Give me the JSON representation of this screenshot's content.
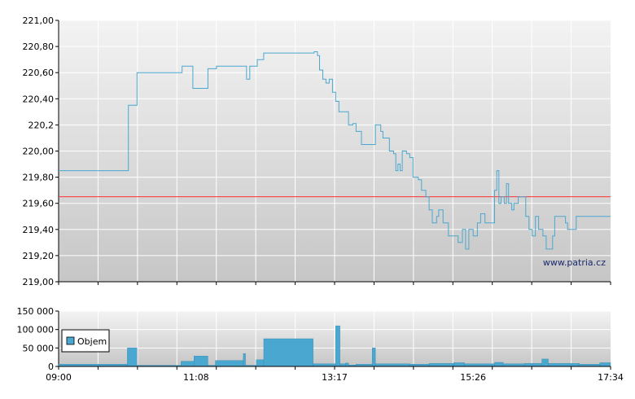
{
  "chart_data": [
    {
      "type": "line",
      "name_hint": "price",
      "x_ticks": [
        "09:00",
        "11:08",
        "13:17",
        "15:26",
        "17:34"
      ],
      "y_ticks": [
        "219,00",
        "219,20",
        "219,40",
        "219,60",
        "219,80",
        "220,00",
        "220,2",
        "220,40",
        "220,60",
        "220,80",
        "221,00"
      ],
      "ylim": [
        219.0,
        221.0
      ],
      "xlim": [
        "09:00",
        "17:34"
      ],
      "grid": true,
      "reference_line": 219.65,
      "watermark": "www.patria.cz",
      "colors": {
        "line": "#4aa8d0",
        "reference": "#ff3030",
        "grid": "#ffffff"
      },
      "series": [
        {
          "points": [
            [
              "09:00",
              219.85
            ],
            [
              "10:04",
              219.85
            ],
            [
              "10:05",
              220.35
            ],
            [
              "10:12",
              220.35
            ],
            [
              "10:13",
              220.6
            ],
            [
              "10:54",
              220.6
            ],
            [
              "10:55",
              220.65
            ],
            [
              "11:04",
              220.65
            ],
            [
              "11:05",
              220.48
            ],
            [
              "11:18",
              220.48
            ],
            [
              "11:19",
              220.63
            ],
            [
              "11:26",
              220.63
            ],
            [
              "11:27",
              220.65
            ],
            [
              "11:54",
              220.65
            ],
            [
              "11:55",
              220.55
            ],
            [
              "11:57",
              220.55
            ],
            [
              "11:58",
              220.65
            ],
            [
              "12:04",
              220.65
            ],
            [
              "12:05",
              220.7
            ],
            [
              "12:10",
              220.7
            ],
            [
              "12:11",
              220.75
            ],
            [
              "12:57",
              220.75
            ],
            [
              "12:58",
              220.76
            ],
            [
              "13:01",
              220.73
            ],
            [
              "13:03",
              220.62
            ],
            [
              "13:06",
              220.55
            ],
            [
              "13:09",
              220.52
            ],
            [
              "13:12",
              220.55
            ],
            [
              "13:15",
              220.45
            ],
            [
              "13:18",
              220.38
            ],
            [
              "13:21",
              220.3
            ],
            [
              "13:27",
              220.3
            ],
            [
              "13:30",
              220.2
            ],
            [
              "13:34",
              220.21
            ],
            [
              "13:37",
              220.15
            ],
            [
              "13:42",
              220.05
            ],
            [
              "13:53",
              220.05
            ],
            [
              "13:55",
              220.2
            ],
            [
              "14:00",
              220.15
            ],
            [
              "14:02",
              220.1
            ],
            [
              "14:06",
              220.1
            ],
            [
              "14:08",
              220.0
            ],
            [
              "14:12",
              219.98
            ],
            [
              "14:14",
              219.85
            ],
            [
              "14:16",
              219.9
            ],
            [
              "14:18",
              219.85
            ],
            [
              "14:20",
              220.0
            ],
            [
              "14:24",
              219.98
            ],
            [
              "14:27",
              219.95
            ],
            [
              "14:30",
              219.8
            ],
            [
              "14:35",
              219.78
            ],
            [
              "14:38",
              219.7
            ],
            [
              "14:42",
              219.65
            ],
            [
              "14:45",
              219.55
            ],
            [
              "14:48",
              219.45
            ],
            [
              "14:52",
              219.5
            ],
            [
              "14:54",
              219.55
            ],
            [
              "14:58",
              219.45
            ],
            [
              "15:03",
              219.35
            ],
            [
              "15:10",
              219.35
            ],
            [
              "15:12",
              219.3
            ],
            [
              "15:16",
              219.4
            ],
            [
              "15:19",
              219.25
            ],
            [
              "15:22",
              219.4
            ],
            [
              "15:26",
              219.35
            ],
            [
              "15:30",
              219.45
            ],
            [
              "15:33",
              219.52
            ],
            [
              "15:37",
              219.45
            ],
            [
              "15:44",
              219.45
            ],
            [
              "15:46",
              219.7
            ],
            [
              "15:48",
              219.85
            ],
            [
              "15:50",
              219.6
            ],
            [
              "15:52",
              219.65
            ],
            [
              "15:55",
              219.6
            ],
            [
              "15:57",
              219.75
            ],
            [
              "15:59",
              219.6
            ],
            [
              "16:02",
              219.55
            ],
            [
              "16:04",
              219.6
            ],
            [
              "16:08",
              219.65
            ],
            [
              "16:14",
              219.65
            ],
            [
              "16:15",
              219.5
            ],
            [
              "16:18",
              219.4
            ],
            [
              "16:21",
              219.35
            ],
            [
              "16:24",
              219.5
            ],
            [
              "16:27",
              219.4
            ],
            [
              "16:31",
              219.35
            ],
            [
              "16:34",
              219.25
            ],
            [
              "16:40",
              219.35
            ],
            [
              "16:42",
              219.5
            ],
            [
              "16:52",
              219.45
            ],
            [
              "16:54",
              219.4
            ],
            [
              "17:02",
              219.5
            ],
            [
              "17:34",
              219.5
            ]
          ]
        }
      ]
    },
    {
      "type": "bar",
      "name_hint": "volume",
      "legend": [
        "Objem"
      ],
      "x_ticks": [
        "09:00",
        "11:08",
        "13:17",
        "15:26",
        "17:34"
      ],
      "y_ticks": [
        "0",
        "50 000",
        "100 000",
        "150 000"
      ],
      "ylim": [
        0,
        150000
      ],
      "grid": true,
      "colors": {
        "bar": "#4aa8d0",
        "bar_edge": "#2f86b0"
      },
      "series": [
        {
          "name": "Objem",
          "bars": [
            [
              "09:00",
              "10:04",
              6000
            ],
            [
              "10:04",
              "10:13",
              50000
            ],
            [
              "10:13",
              "10:54",
              3000
            ],
            [
              "10:54",
              "11:06",
              14000
            ],
            [
              "11:06",
              "11:19",
              28000
            ],
            [
              "11:19",
              "11:26",
              3000
            ],
            [
              "11:26",
              "11:52",
              16000
            ],
            [
              "11:52",
              "11:54",
              35000
            ],
            [
              "11:54",
              "12:04",
              3000
            ],
            [
              "12:04",
              "12:11",
              18000
            ],
            [
              "12:11",
              "12:57",
              75000
            ],
            [
              "12:57",
              "13:18",
              7000
            ],
            [
              "13:18",
              "13:22",
              110000
            ],
            [
              "13:22",
              "13:27",
              7000
            ],
            [
              "13:27",
              "13:30",
              9000
            ],
            [
              "13:30",
              "13:37",
              4000
            ],
            [
              "13:37",
              "13:52",
              6000
            ],
            [
              "13:52",
              "13:55",
              50000
            ],
            [
              "13:55",
              "14:27",
              7000
            ],
            [
              "14:27",
              "14:45",
              6000
            ],
            [
              "14:45",
              "15:08",
              8000
            ],
            [
              "15:08",
              "15:18",
              10000
            ],
            [
              "15:18",
              "15:46",
              7000
            ],
            [
              "15:46",
              "15:54",
              11000
            ],
            [
              "15:54",
              "16:14",
              7000
            ],
            [
              "16:14",
              "16:30",
              8000
            ],
            [
              "16:30",
              "16:36",
              20000
            ],
            [
              "16:36",
              "17:05",
              8000
            ],
            [
              "17:05",
              "17:24",
              6000
            ],
            [
              "17:24",
              "17:34",
              10000
            ]
          ]
        }
      ]
    }
  ]
}
